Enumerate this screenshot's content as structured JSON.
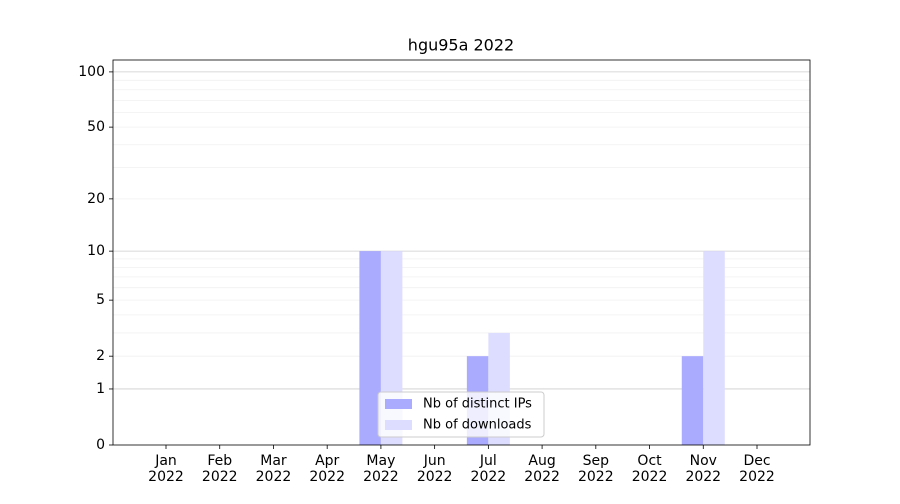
{
  "chart_data": {
    "type": "bar",
    "title": "hgu95a 2022",
    "categories": [
      [
        "Jan",
        "2022"
      ],
      [
        "Feb",
        "2022"
      ],
      [
        "Mar",
        "2022"
      ],
      [
        "Apr",
        "2022"
      ],
      [
        "May",
        "2022"
      ],
      [
        "Jun",
        "2022"
      ],
      [
        "Jul",
        "2022"
      ],
      [
        "Aug",
        "2022"
      ],
      [
        "Sep",
        "2022"
      ],
      [
        "Oct",
        "2022"
      ],
      [
        "Nov",
        "2022"
      ],
      [
        "Dec",
        "2022"
      ]
    ],
    "series": [
      {
        "name": "Nb of distinct IPs",
        "color": "#aaaaff",
        "values": [
          0,
          0,
          0,
          0,
          10,
          0,
          2,
          0,
          0,
          0,
          2,
          0
        ]
      },
      {
        "name": "Nb of downloads",
        "color": "#ddddff",
        "values": [
          0,
          0,
          0,
          0,
          10,
          0,
          3,
          0,
          0,
          0,
          10,
          0
        ]
      }
    ],
    "yscale": "log1p",
    "ylim": [
      0,
      116
    ],
    "yticks": [
      0,
      1,
      2,
      5,
      10,
      20,
      50,
      100
    ],
    "grid_major": [
      1,
      10,
      100
    ],
    "grid_minor": [
      2,
      3,
      4,
      5,
      6,
      7,
      8,
      9,
      20,
      30,
      40,
      50,
      60,
      70,
      80,
      90
    ],
    "legend": "lower center"
  }
}
